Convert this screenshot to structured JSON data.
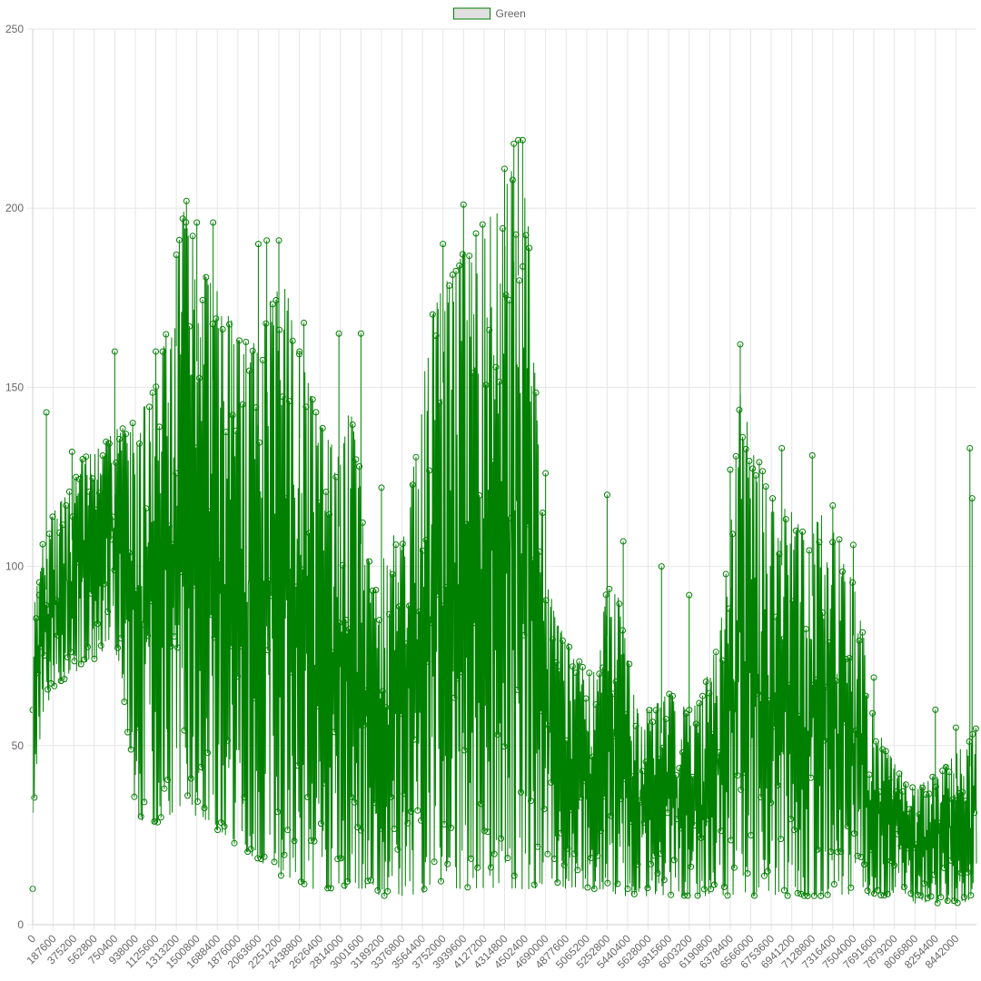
{
  "chart_data": {
    "type": "line",
    "title": "",
    "xlabel": "",
    "ylabel": "",
    "ylim": [
      0,
      250
    ],
    "xlim": [
      0,
      8630000
    ],
    "y_ticks": [
      0,
      50,
      100,
      150,
      200,
      250
    ],
    "x_ticks": [
      0,
      187600,
      375200,
      562800,
      750400,
      938000,
      1125600,
      1313200,
      1500800,
      1688400,
      1876000,
      2063600,
      2251200,
      2438800,
      2626400,
      2814000,
      3001600,
      3189200,
      3376800,
      3564400,
      3752000,
      3939600,
      4127200,
      4314800,
      4502400,
      4690000,
      4877600,
      5065200,
      5252800,
      5440400,
      5628000,
      5815600,
      6003200,
      6190800,
      6378400,
      6566000,
      6753600,
      6941200,
      7128800,
      7316400,
      7504000,
      7691600,
      7879200,
      8066800,
      8254400,
      8442000
    ],
    "grid": true,
    "legend_position": "top-center",
    "point_style": "open-circle",
    "series": [
      {
        "name": "Green",
        "color": "#008000",
        "fill": "#e0e0e0",
        "envelope": {
          "x": [
            0,
            20000,
            60000,
            100000,
            187600,
            300000,
            375200,
            450000,
            562800,
            650000,
            750400,
            850000,
            938000,
            1030000,
            1125600,
            1220000,
            1313200,
            1380000,
            1450000,
            1500800,
            1600000,
            1688400,
            1780000,
            1876000,
            1970000,
            2063600,
            2150000,
            2251200,
            2340000,
            2438800,
            2530000,
            2626400,
            2720000,
            2814000,
            2900000,
            3001600,
            3100000,
            3189200,
            3280000,
            3376800,
            3470000,
            3564400,
            3650000,
            3752000,
            3850000,
            3939600,
            4030000,
            4127200,
            4220000,
            4314800,
            4400000,
            4502400,
            4600000,
            4690000,
            4780000,
            4877600,
            4970000,
            5065200,
            5160000,
            5252800,
            5350000,
            5440400,
            5530000,
            5628000,
            5720000,
            5815600,
            5910000,
            6003200,
            6100000,
            6190800,
            6280000,
            6378400,
            6470000,
            6566000,
            6660000,
            6753600,
            6850000,
            6941200,
            7030000,
            7128800,
            7220000,
            7316400,
            7410000,
            7504000,
            7600000,
            7691600,
            7790000,
            7879200,
            7970000,
            8066800,
            8160000,
            8254400,
            8350000,
            8442000,
            8530000,
            8630000
          ],
          "max": [
            60,
            90,
            100,
            108,
            115,
            120,
            128,
            130,
            132,
            134,
            138,
            140,
            142,
            145,
            150,
            165,
            190,
            200,
            195,
            185,
            180,
            178,
            170,
            168,
            165,
            160,
            172,
            182,
            175,
            160,
            150,
            140,
            135,
            130,
            145,
            125,
            95,
            100,
            110,
            105,
            125,
            150,
            170,
            178,
            182,
            188,
            192,
            196,
            200,
            205,
            212,
            215,
            150,
            100,
            85,
            80,
            75,
            70,
            72,
            95,
            95,
            75,
            62,
            60,
            62,
            65,
            62,
            60,
            62,
            72,
            80,
            110,
            150,
            135,
            128,
            120,
            118,
            115,
            110,
            108,
            118,
            112,
            105,
            95,
            80,
            60,
            50,
            45,
            42,
            38,
            40,
            42,
            45,
            48,
            50,
            55
          ],
          "min": [
            18,
            40,
            50,
            60,
            65,
            68,
            70,
            72,
            74,
            76,
            78,
            60,
            30,
            28,
            28,
            30,
            32,
            34,
            32,
            30,
            28,
            26,
            24,
            22,
            20,
            18,
            16,
            14,
            12,
            12,
            10,
            10,
            10,
            10,
            10,
            10,
            8,
            8,
            8,
            8,
            8,
            8,
            10,
            10,
            10,
            10,
            10,
            10,
            10,
            10,
            10,
            10,
            10,
            12,
            12,
            10,
            10,
            10,
            10,
            10,
            8,
            8,
            8,
            8,
            8,
            8,
            8,
            8,
            8,
            8,
            8,
            8,
            8,
            8,
            8,
            8,
            8,
            8,
            8,
            8,
            8,
            8,
            8,
            8,
            8,
            8,
            8,
            8,
            8,
            6,
            6,
            6,
            6,
            6,
            6,
            6
          ]
        },
        "peaks": [
          {
            "x": 0,
            "y": 10
          },
          {
            "x": 60000,
            "y": 92
          },
          {
            "x": 125000,
            "y": 143
          },
          {
            "x": 360000,
            "y": 132
          },
          {
            "x": 750400,
            "y": 160
          },
          {
            "x": 1125600,
            "y": 160
          },
          {
            "x": 1313200,
            "y": 187
          },
          {
            "x": 1406000,
            "y": 202
          },
          {
            "x": 1500800,
            "y": 196
          },
          {
            "x": 1650000,
            "y": 196
          },
          {
            "x": 2063600,
            "y": 190
          },
          {
            "x": 2140000,
            "y": 191
          },
          {
            "x": 2251200,
            "y": 191
          },
          {
            "x": 2440000,
            "y": 160
          },
          {
            "x": 2480000,
            "y": 168
          },
          {
            "x": 2800000,
            "y": 165
          },
          {
            "x": 3001600,
            "y": 165
          },
          {
            "x": 3189200,
            "y": 122
          },
          {
            "x": 3752000,
            "y": 190
          },
          {
            "x": 3939600,
            "y": 201
          },
          {
            "x": 4314800,
            "y": 211
          },
          {
            "x": 4400000,
            "y": 218
          },
          {
            "x": 4440000,
            "y": 219
          },
          {
            "x": 4480000,
            "y": 219
          },
          {
            "x": 4690000,
            "y": 126
          },
          {
            "x": 5252800,
            "y": 120
          },
          {
            "x": 5400000,
            "y": 107
          },
          {
            "x": 5750000,
            "y": 100
          },
          {
            "x": 6003200,
            "y": 92
          },
          {
            "x": 6378400,
            "y": 127
          },
          {
            "x": 6470000,
            "y": 162
          },
          {
            "x": 6850000,
            "y": 133
          },
          {
            "x": 7128800,
            "y": 131
          },
          {
            "x": 7316400,
            "y": 117
          },
          {
            "x": 7504000,
            "y": 106
          },
          {
            "x": 7691600,
            "y": 69
          },
          {
            "x": 8254400,
            "y": 60
          },
          {
            "x": 8442000,
            "y": 55
          },
          {
            "x": 8570000,
            "y": 133
          },
          {
            "x": 8590000,
            "y": 119
          }
        ]
      }
    ]
  }
}
